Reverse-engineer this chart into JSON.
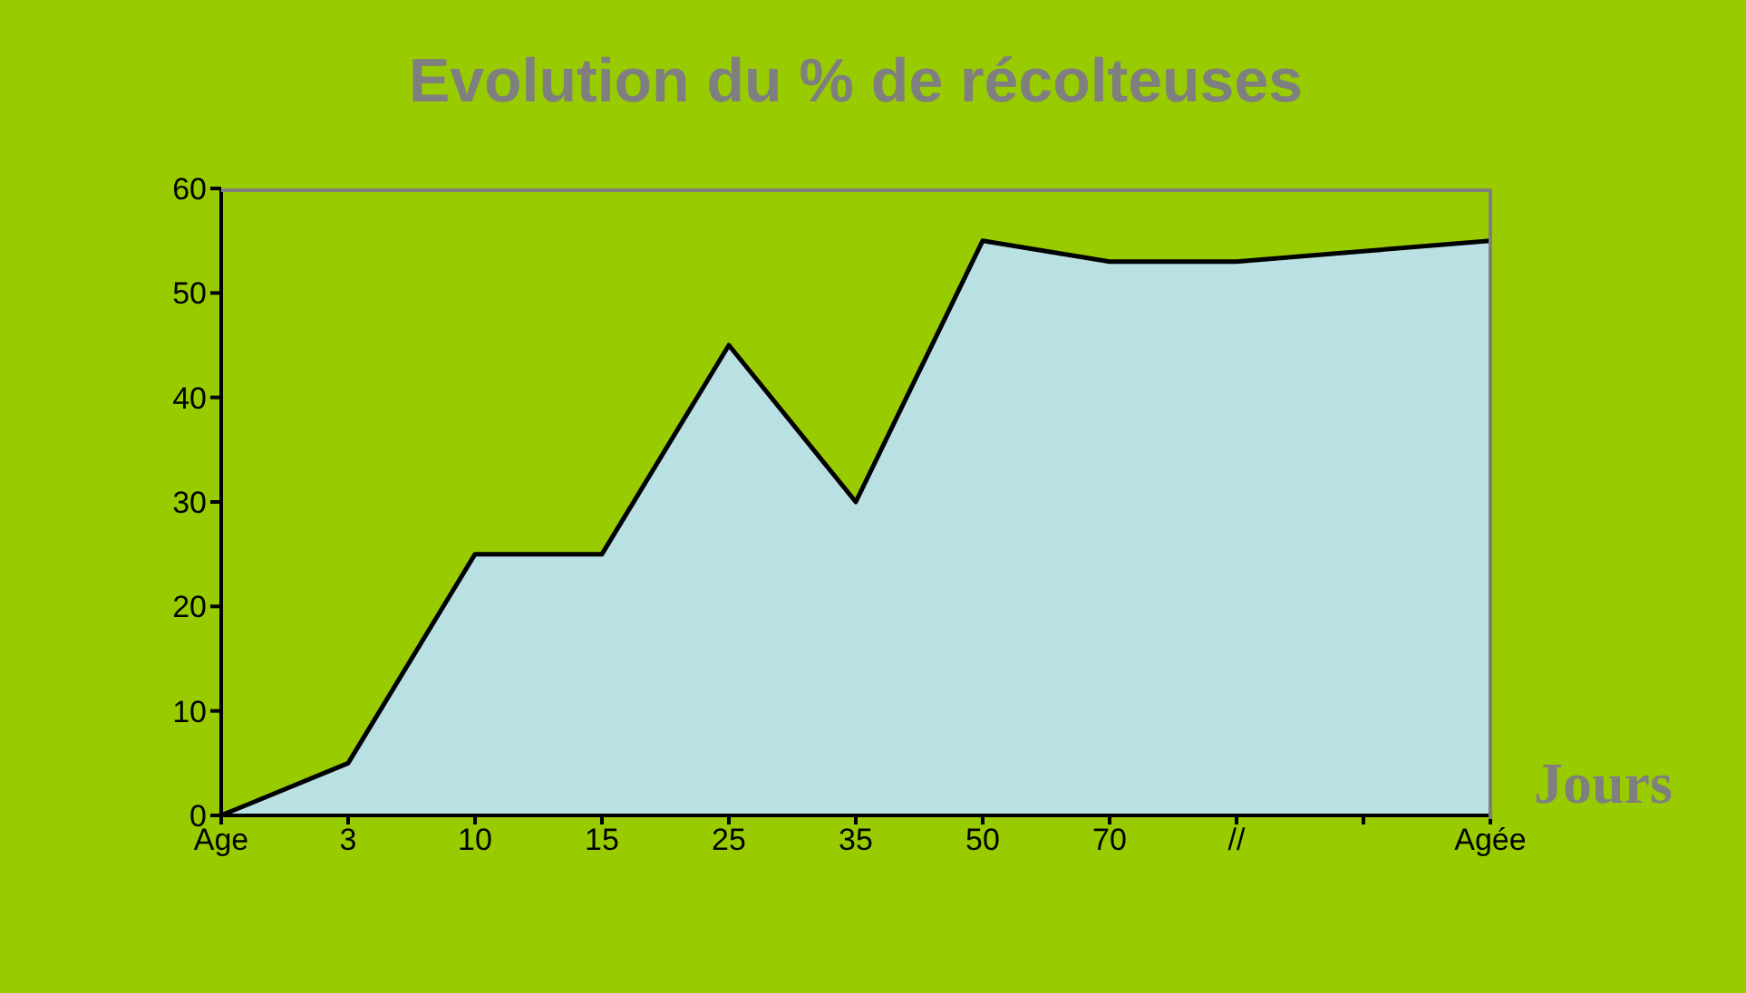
{
  "chart_data": {
    "type": "area",
    "title": "Evolution du % de récolteuses",
    "xlabel": "Jours",
    "categories": [
      "Age",
      "3",
      "10",
      "15",
      "25",
      "35",
      "50",
      "70",
      "//",
      null,
      "Agée"
    ],
    "series": [
      {
        "color": "#b9e0e3",
        "values": [
          0,
          5,
          25,
          25,
          45,
          30,
          55,
          53,
          53,
          54,
          55
        ]
      }
    ],
    "ylim": [
      0,
      60
    ],
    "yticks": [
      0,
      10,
      20,
      30,
      40,
      50,
      60
    ],
    "grid": false,
    "legend": false,
    "marker": "none",
    "line_style": "solid"
  }
}
